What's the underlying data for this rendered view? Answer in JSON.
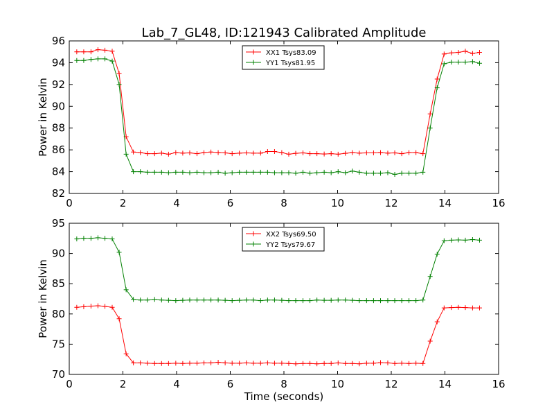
{
  "chart_data": {
    "type": "line",
    "title": "Lab_7_GL48, ID:121943 Calibrated Amplitude",
    "xlabel": "Time (seconds)",
    "panels": [
      {
        "ylabel": "Power in Kelvin",
        "xlim": [
          0,
          16
        ],
        "ylim": [
          82,
          96
        ],
        "xticks": [
          "0",
          "2",
          "4",
          "6",
          "8",
          "10",
          "12",
          "14",
          "16"
        ],
        "yticks": [
          "82",
          "84",
          "86",
          "88",
          "90",
          "92",
          "94",
          "96"
        ],
        "legend_placement": "top-center",
        "series": [
          {
            "name": "XX1 Tsys83.09",
            "color": "#ff0000",
            "x": [
              0.28,
              0.54,
              0.81,
              1.07,
              1.33,
              1.6,
              1.86,
              2.12,
              2.39,
              2.65,
              2.91,
              3.18,
              3.44,
              3.7,
              3.97,
              4.23,
              4.49,
              4.76,
              5.02,
              5.28,
              5.55,
              5.81,
              6.07,
              6.34,
              6.6,
              6.86,
              7.13,
              7.39,
              7.65,
              7.92,
              8.18,
              8.44,
              8.71,
              8.97,
              9.23,
              9.5,
              9.76,
              10.02,
              10.29,
              10.55,
              10.81,
              11.08,
              11.34,
              11.6,
              11.87,
              12.13,
              12.39,
              12.66,
              12.92,
              13.18,
              13.45,
              13.71,
              13.97,
              14.24,
              14.5,
              14.76,
              15.03,
              15.29
            ],
            "y": [
              95.0,
              95.0,
              95.0,
              95.2,
              95.15,
              95.05,
              93.0,
              87.2,
              85.8,
              85.75,
              85.65,
              85.65,
              85.7,
              85.6,
              85.75,
              85.7,
              85.72,
              85.65,
              85.75,
              85.8,
              85.75,
              85.72,
              85.65,
              85.7,
              85.72,
              85.7,
              85.7,
              85.85,
              85.85,
              85.75,
              85.6,
              85.68,
              85.72,
              85.65,
              85.65,
              85.62,
              85.65,
              85.6,
              85.68,
              85.75,
              85.7,
              85.72,
              85.72,
              85.75,
              85.7,
              85.72,
              85.65,
              85.75,
              85.75,
              85.65,
              89.3,
              92.5,
              94.8,
              94.9,
              94.95,
              95.05,
              94.85,
              94.95
            ]
          },
          {
            "name": "YY1 Tsys81.95",
            "color": "#008000",
            "x": [
              0.28,
              0.54,
              0.81,
              1.07,
              1.33,
              1.6,
              1.86,
              2.12,
              2.39,
              2.65,
              2.91,
              3.18,
              3.44,
              3.7,
              3.97,
              4.23,
              4.49,
              4.76,
              5.02,
              5.28,
              5.55,
              5.81,
              6.07,
              6.34,
              6.6,
              6.86,
              7.13,
              7.39,
              7.65,
              7.92,
              8.18,
              8.44,
              8.71,
              8.97,
              9.23,
              9.5,
              9.76,
              10.02,
              10.29,
              10.55,
              10.81,
              11.08,
              11.34,
              11.6,
              11.87,
              12.13,
              12.39,
              12.66,
              12.92,
              13.18,
              13.45,
              13.71,
              13.97,
              14.24,
              14.5,
              14.76,
              15.03,
              15.29
            ],
            "y": [
              94.2,
              94.2,
              94.3,
              94.35,
              94.35,
              94.15,
              92.0,
              85.6,
              84.0,
              84.0,
              83.95,
              83.95,
              83.95,
              83.9,
              83.95,
              83.95,
              83.9,
              83.95,
              83.9,
              83.9,
              83.95,
              83.85,
              83.9,
              83.95,
              83.95,
              83.95,
              83.95,
              83.95,
              83.9,
              83.9,
              83.9,
              83.85,
              83.95,
              83.85,
              83.9,
              83.95,
              83.9,
              84.0,
              83.9,
              84.05,
              83.95,
              83.85,
              83.85,
              83.85,
              83.9,
              83.75,
              83.85,
              83.85,
              83.85,
              83.95,
              88.0,
              91.7,
              93.9,
              94.05,
              94.05,
              94.05,
              94.1,
              93.95
            ]
          }
        ]
      },
      {
        "ylabel": "Power in Kelvin",
        "xlim": [
          0,
          16
        ],
        "ylim": [
          70,
          95
        ],
        "xticks": [
          "0",
          "2",
          "4",
          "6",
          "8",
          "10",
          "12",
          "14",
          "16"
        ],
        "yticks": [
          "70",
          "75",
          "80",
          "85",
          "90",
          "95"
        ],
        "legend_placement": "top-center",
        "series": [
          {
            "name": "XX2 Tsys69.50",
            "color": "#ff0000",
            "x": [
              0.28,
              0.54,
              0.81,
              1.07,
              1.33,
              1.6,
              1.86,
              2.12,
              2.39,
              2.65,
              2.91,
              3.18,
              3.44,
              3.7,
              3.97,
              4.23,
              4.49,
              4.76,
              5.02,
              5.28,
              5.55,
              5.81,
              6.07,
              6.34,
              6.6,
              6.86,
              7.13,
              7.39,
              7.65,
              7.92,
              8.18,
              8.44,
              8.71,
              8.97,
              9.23,
              9.5,
              9.76,
              10.02,
              10.29,
              10.55,
              10.81,
              11.08,
              11.34,
              11.6,
              11.87,
              12.13,
              12.39,
              12.66,
              12.92,
              13.18,
              13.45,
              13.71,
              13.97,
              14.24,
              14.5,
              14.76,
              15.03,
              15.29
            ],
            "y": [
              81.1,
              81.2,
              81.3,
              81.35,
              81.25,
              81.1,
              79.2,
              73.4,
              71.9,
              71.9,
              71.85,
              71.8,
              71.8,
              71.8,
              71.85,
              71.8,
              71.85,
              71.85,
              71.9,
              71.9,
              72.0,
              71.9,
              71.85,
              71.85,
              71.9,
              71.85,
              71.85,
              71.9,
              71.85,
              71.85,
              71.8,
              71.75,
              71.8,
              71.8,
              71.75,
              71.8,
              71.8,
              71.9,
              71.8,
              71.8,
              71.75,
              71.85,
              71.85,
              71.95,
              71.9,
              71.8,
              71.85,
              71.8,
              71.85,
              71.8,
              75.5,
              78.7,
              81.0,
              81.05,
              81.1,
              81.05,
              81.0,
              81.0
            ]
          },
          {
            "name": "YY2 Tsys79.67",
            "color": "#008000",
            "x": [
              0.28,
              0.54,
              0.81,
              1.07,
              1.33,
              1.6,
              1.86,
              2.12,
              2.39,
              2.65,
              2.91,
              3.18,
              3.44,
              3.7,
              3.97,
              4.23,
              4.49,
              4.76,
              5.02,
              5.28,
              5.55,
              5.81,
              6.07,
              6.34,
              6.6,
              6.86,
              7.13,
              7.39,
              7.65,
              7.92,
              8.18,
              8.44,
              8.71,
              8.97,
              9.23,
              9.5,
              9.76,
              10.02,
              10.29,
              10.55,
              10.81,
              11.08,
              11.34,
              11.6,
              11.87,
              12.13,
              12.39,
              12.66,
              12.92,
              13.18,
              13.45,
              13.71,
              13.97,
              14.24,
              14.5,
              14.76,
              15.03,
              15.29
            ],
            "y": [
              92.4,
              92.5,
              92.5,
              92.6,
              92.5,
              92.4,
              90.2,
              84.0,
              82.4,
              82.3,
              82.3,
              82.4,
              82.3,
              82.25,
              82.2,
              82.25,
              82.3,
              82.3,
              82.3,
              82.3,
              82.3,
              82.25,
              82.2,
              82.25,
              82.3,
              82.3,
              82.2,
              82.3,
              82.3,
              82.25,
              82.2,
              82.2,
              82.2,
              82.2,
              82.3,
              82.25,
              82.25,
              82.3,
              82.3,
              82.25,
              82.2,
              82.2,
              82.2,
              82.2,
              82.2,
              82.2,
              82.2,
              82.2,
              82.2,
              82.3,
              86.2,
              89.9,
              92.1,
              92.2,
              92.25,
              92.2,
              92.3,
              92.2
            ]
          }
        ]
      }
    ]
  }
}
